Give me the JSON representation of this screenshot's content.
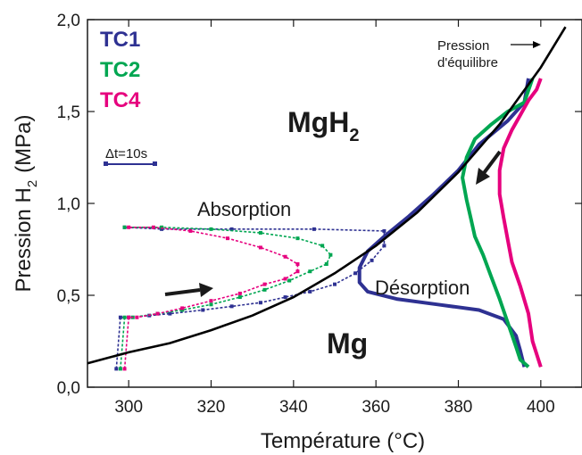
{
  "chart_data": {
    "type": "line",
    "xlabel": "Température (°C)",
    "ylabel": "Pression H",
    "ylabel_sub": "2",
    "ylabel_unit": "(MPa)",
    "xlim": [
      290,
      410
    ],
    "ylim": [
      0.0,
      2.0
    ],
    "xticks": [
      300,
      320,
      340,
      360,
      380,
      400
    ],
    "xtick_labels": [
      "300",
      "320",
      "340",
      "360",
      "380",
      "400"
    ],
    "yticks": [
      0.0,
      0.5,
      1.0,
      1.5,
      2.0
    ],
    "ytick_labels": [
      "0,0",
      "0,5",
      "1,0",
      "1,5",
      "2,0"
    ],
    "grid": false,
    "legend_position": "top-left",
    "series": [
      {
        "name": "TC1",
        "color": "#2e3192",
        "absorption": [
          [
            297,
            0.1
          ],
          [
            298,
            0.38
          ],
          [
            300,
            0.38
          ],
          [
            305,
            0.39
          ],
          [
            310,
            0.4
          ],
          [
            318,
            0.42
          ],
          [
            325,
            0.44
          ],
          [
            332,
            0.46
          ],
          [
            338,
            0.49
          ],
          [
            344,
            0.52
          ],
          [
            350,
            0.56
          ],
          [
            355,
            0.62
          ],
          [
            359,
            0.69
          ],
          [
            362,
            0.77
          ],
          [
            362,
            0.85
          ],
          [
            345,
            0.86
          ],
          [
            325,
            0.86
          ],
          [
            308,
            0.86
          ],
          [
            299,
            0.87
          ]
        ],
        "desorption": [
          [
            397,
            1.68
          ],
          [
            396,
            1.55
          ],
          [
            392,
            1.45
          ],
          [
            385,
            1.32
          ],
          [
            380,
            1.18
          ],
          [
            374,
            1.05
          ],
          [
            368,
            0.93
          ],
          [
            362,
            0.82
          ],
          [
            358,
            0.74
          ],
          [
            356,
            0.65
          ],
          [
            356,
            0.57
          ],
          [
            358,
            0.52
          ],
          [
            365,
            0.48
          ],
          [
            375,
            0.45
          ],
          [
            385,
            0.42
          ],
          [
            391,
            0.37
          ],
          [
            394,
            0.28
          ],
          [
            395,
            0.2
          ],
          [
            396,
            0.11
          ]
        ]
      },
      {
        "name": "TC2",
        "color": "#00a651",
        "absorption": [
          [
            298,
            0.1
          ],
          [
            299,
            0.38
          ],
          [
            301,
            0.38
          ],
          [
            307,
            0.4
          ],
          [
            313,
            0.42
          ],
          [
            320,
            0.45
          ],
          [
            327,
            0.49
          ],
          [
            333,
            0.53
          ],
          [
            339,
            0.58
          ],
          [
            344,
            0.63
          ],
          [
            348,
            0.67
          ],
          [
            349,
            0.72
          ],
          [
            347,
            0.77
          ],
          [
            341,
            0.81
          ],
          [
            332,
            0.84
          ],
          [
            320,
            0.86
          ],
          [
            308,
            0.87
          ],
          [
            299,
            0.87
          ]
        ],
        "desorption": [
          [
            398,
            1.68
          ],
          [
            396,
            1.55
          ],
          [
            392,
            1.5
          ],
          [
            388,
            1.43
          ],
          [
            384,
            1.35
          ],
          [
            382,
            1.25
          ],
          [
            381,
            1.14
          ],
          [
            382,
            1.02
          ],
          [
            383,
            0.92
          ],
          [
            384,
            0.82
          ],
          [
            386,
            0.72
          ],
          [
            388,
            0.6
          ],
          [
            390,
            0.48
          ],
          [
            392,
            0.35
          ],
          [
            394,
            0.22
          ],
          [
            395,
            0.15
          ],
          [
            397,
            0.11
          ]
        ]
      },
      {
        "name": "TC4",
        "color": "#e6007e",
        "absorption": [
          [
            299,
            0.1
          ],
          [
            300,
            0.38
          ],
          [
            302,
            0.38
          ],
          [
            307,
            0.4
          ],
          [
            313,
            0.43
          ],
          [
            320,
            0.47
          ],
          [
            327,
            0.51
          ],
          [
            333,
            0.56
          ],
          [
            338,
            0.59
          ],
          [
            341,
            0.63
          ],
          [
            341,
            0.67
          ],
          [
            338,
            0.71
          ],
          [
            332,
            0.76
          ],
          [
            324,
            0.81
          ],
          [
            315,
            0.85
          ],
          [
            306,
            0.87
          ],
          [
            300,
            0.87
          ]
        ],
        "desorption": [
          [
            400,
            1.68
          ],
          [
            399,
            1.62
          ],
          [
            397,
            1.56
          ],
          [
            395,
            1.48
          ],
          [
            393,
            1.4
          ],
          [
            391,
            1.3
          ],
          [
            390,
            1.18
          ],
          [
            390,
            1.05
          ],
          [
            391,
            0.92
          ],
          [
            392,
            0.8
          ],
          [
            393,
            0.68
          ],
          [
            395,
            0.55
          ],
          [
            397,
            0.4
          ],
          [
            398,
            0.25
          ],
          [
            400,
            0.11
          ]
        ]
      },
      {
        "name": "Pression d'équilibre",
        "color": "#000000",
        "x": [
          290,
          300,
          310,
          320,
          330,
          340,
          350,
          360,
          370,
          380,
          390,
          400,
          406
        ],
        "y": [
          0.13,
          0.19,
          0.24,
          0.31,
          0.39,
          0.49,
          0.62,
          0.77,
          0.95,
          1.17,
          1.43,
          1.74,
          1.96
        ]
      }
    ],
    "legend": [
      "TC1",
      "TC2",
      "TC4"
    ],
    "annotations": {
      "phase_hydride": "MgH",
      "phase_hydride_sub": "2",
      "phase_metal": "Mg",
      "absorption": "Absorption",
      "desorption": "Désorption",
      "equilibrium_line1": "Pression",
      "equilibrium_line2": "d'équilibre",
      "time_scale": "Δt=10s"
    }
  }
}
